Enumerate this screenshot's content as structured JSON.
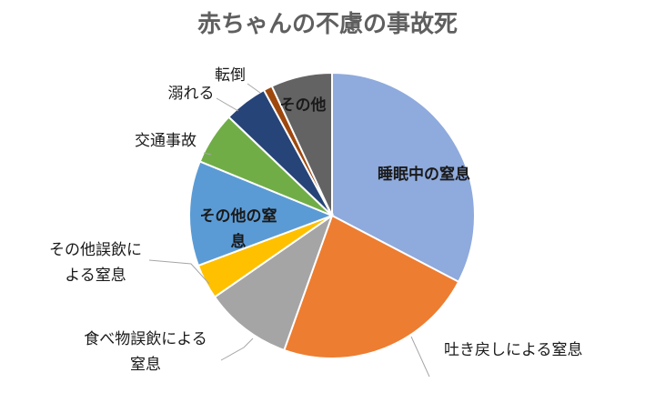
{
  "chart_data": {
    "type": "pie",
    "title": "赤ちゃんの不慮の事故死",
    "categories": [
      "睡眠中の窒息",
      "吐き戻しによる窒息",
      "食べ物誤飲による窒息",
      "その他誤飲による窒息",
      "その他の窒息",
      "交通事故",
      "溺れる",
      "転倒",
      "その他"
    ],
    "values": [
      33,
      23,
      10,
      4,
      12,
      6,
      5,
      1,
      7
    ],
    "colors": [
      "#8faadc",
      "#ed7d31",
      "#a5a5a5",
      "#ffc000",
      "#5b9bd5",
      "#70ad47",
      "#264478",
      "#9e480e",
      "#636363"
    ],
    "slice_labels": [
      [
        "睡眠中の窒息"
      ],
      [
        "吐き戻しによる窒息"
      ],
      [
        "食べ物誤飲による",
        "窒息"
      ],
      [
        "その他誤飲に",
        "よる窒息"
      ],
      [
        "その他の窒",
        "息"
      ],
      [
        "交通事故"
      ],
      [
        "溺れる"
      ],
      [
        "転倒"
      ],
      [
        "その他"
      ]
    ],
    "legend": "none"
  }
}
